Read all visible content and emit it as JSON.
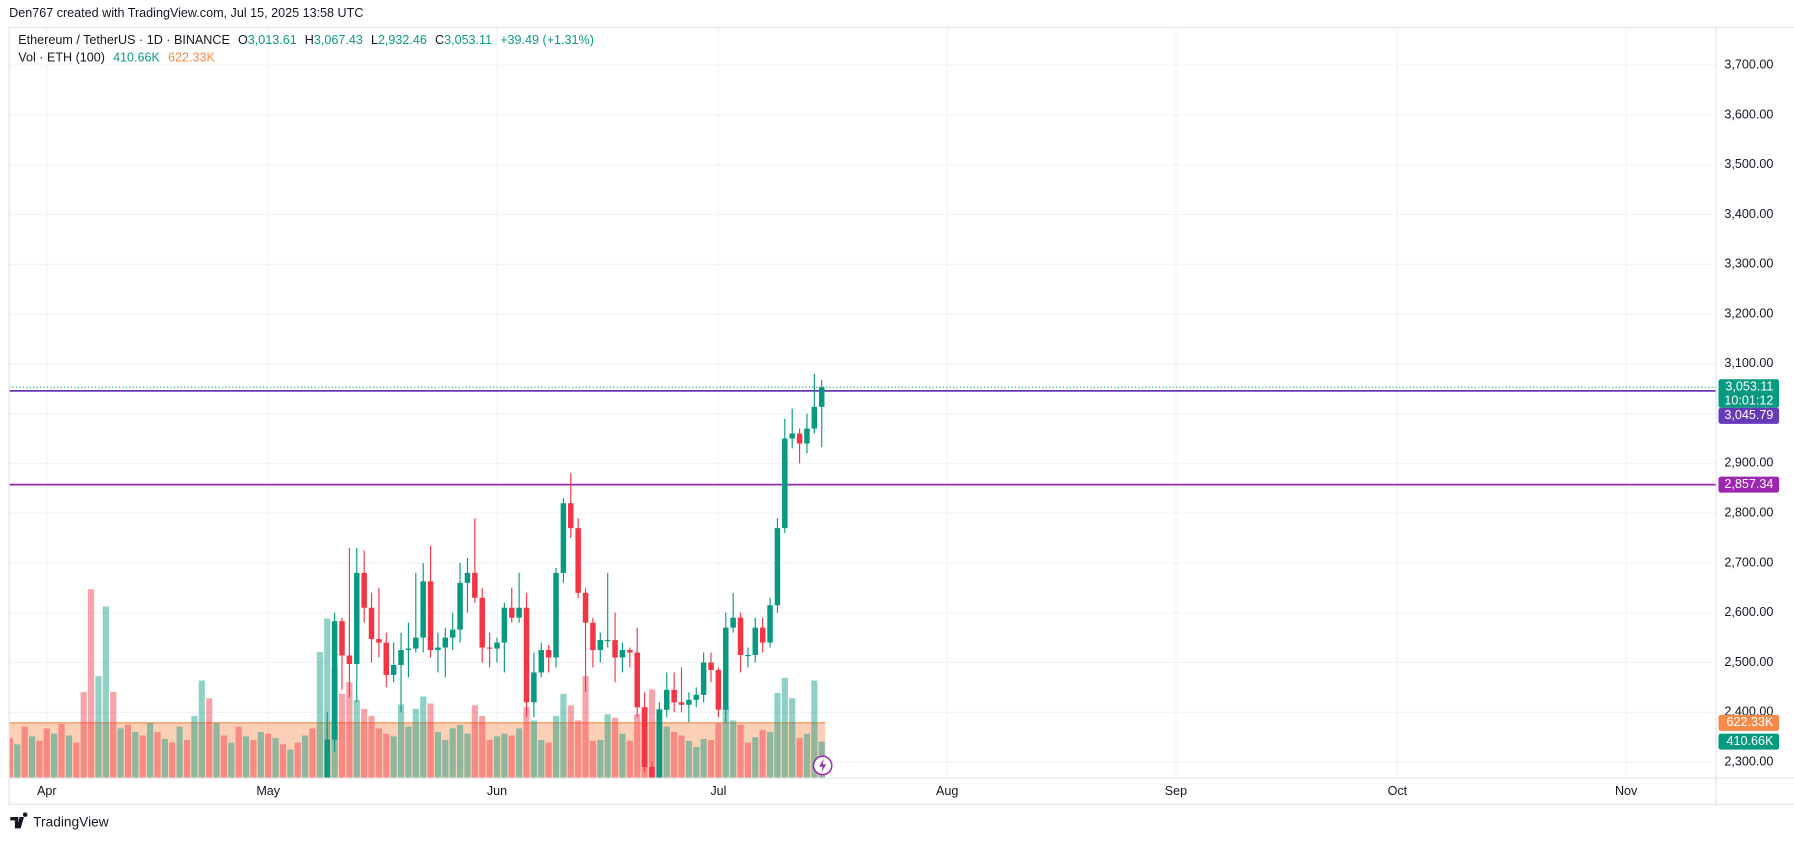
{
  "header": {
    "credit": "Den767 created with TradingView.com, Jul 15, 2025 13:58 UTC",
    "brand": "TradingView"
  },
  "chart_data": {
    "type": "candlestick",
    "legend": {
      "symbol": "Ethereum / TetherUS · 1D · BINANCE",
      "keys": [
        "O",
        "H",
        "L",
        "C"
      ],
      "ohlc": [
        "3,013.61",
        "3,067.43",
        "2,932.46",
        "3,053.11"
      ],
      "change": "+39.49 (+1.31%)",
      "volume_name": "Vol · ETH (100)"
    },
    "up_color": "#089981",
    "down_color": "#f23645",
    "xlim": [
      85.9,
      317.2
    ],
    "xticks": [
      {
        "value": 91,
        "label": "Apr"
      },
      {
        "value": 121,
        "label": "May"
      },
      {
        "value": 152,
        "label": "Jun"
      },
      {
        "value": 182,
        "label": "Jul"
      },
      {
        "value": 213,
        "label": "Aug"
      },
      {
        "value": 244,
        "label": "Sep"
      },
      {
        "value": 274,
        "label": "Oct"
      },
      {
        "value": 305,
        "label": "Nov"
      }
    ],
    "ylim": [
      2267.8,
      3775.9
    ],
    "yticks": [
      {
        "value": 2300,
        "label": "2,300.00"
      },
      {
        "value": 2400,
        "label": "2,400.00"
      },
      {
        "value": 2500,
        "label": "2,500.00"
      },
      {
        "value": 2600,
        "label": "2,600.00"
      },
      {
        "value": 2700,
        "label": "2,700.00"
      },
      {
        "value": 2800,
        "label": "2,800.00"
      },
      {
        "value": 2900,
        "label": "2,900.00"
      },
      {
        "value": 3000,
        "label": "3,000.00"
      },
      {
        "value": 3100,
        "label": "3,100.00"
      },
      {
        "value": 3200,
        "label": "3,200.00"
      },
      {
        "value": 3300,
        "label": "3,300.00"
      },
      {
        "value": 3400,
        "label": "3,400.00"
      },
      {
        "value": 3500,
        "label": "3,500.00"
      },
      {
        "value": 3600,
        "label": "3,600.00"
      },
      {
        "value": 3700,
        "label": "3,700.00"
      }
    ],
    "grid": true,
    "x": [
      129,
      130,
      131,
      132,
      133,
      134,
      135,
      136,
      137,
      138,
      139,
      140,
      141,
      142,
      143,
      144,
      145,
      146,
      147,
      148,
      149,
      150,
      151,
      152,
      153,
      154,
      155,
      156,
      157,
      158,
      159,
      160,
      161,
      162,
      163,
      164,
      165,
      166,
      167,
      168,
      169,
      170,
      171,
      172,
      173,
      174,
      175,
      176,
      177,
      178,
      179,
      180,
      181,
      182,
      183,
      184,
      185,
      186,
      187,
      188,
      189,
      190,
      191,
      192,
      193,
      194,
      195,
      196
    ],
    "open": [
      2207,
      2345,
      2583,
      2514,
      2497,
      2680,
      2610,
      2547,
      2540,
      2475,
      2495,
      2525,
      2528,
      2550,
      2663,
      2525,
      2530,
      2550,
      2566,
      2660,
      2680,
      2630,
      2530,
      2528,
      2540,
      2610,
      2590,
      2610,
      2420,
      2480,
      2525,
      2510,
      2680,
      2820,
      2770,
      2640,
      2580,
      2525,
      2545,
      2545,
      2510,
      2525,
      2520,
      2410,
      2290,
      2230,
      2405,
      2445,
      2420,
      2415,
      2425,
      2435,
      2500,
      2485,
      2405,
      2570,
      2590,
      2515,
      2515,
      2570,
      2540,
      2615,
      2770,
      2950,
      2960,
      2940,
      2970,
      3013.61
    ],
    "high": [
      2400,
      2600,
      2590,
      2730,
      2730,
      2725,
      2640,
      2650,
      2560,
      2540,
      2560,
      2580,
      2680,
      2700,
      2735,
      2560,
      2570,
      2600,
      2700,
      2710,
      2790,
      2650,
      2560,
      2550,
      2620,
      2650,
      2680,
      2640,
      2520,
      2540,
      2535,
      2690,
      2830,
      2880,
      2790,
      2650,
      2590,
      2560,
      2680,
      2600,
      2540,
      2530,
      2570,
      2440,
      2300,
      2420,
      2480,
      2480,
      2490,
      2440,
      2450,
      2520,
      2520,
      2490,
      2600,
      2640,
      2600,
      2530,
      2590,
      2590,
      2630,
      2790,
      2990,
      3010,
      2970,
      3000,
      3080,
      3067.43
    ],
    "low": [
      2150,
      2320,
      2445,
      2430,
      2420,
      2580,
      2500,
      2510,
      2450,
      2460,
      2400,
      2470,
      2520,
      2520,
      2510,
      2480,
      2470,
      2525,
      2540,
      2600,
      2620,
      2500,
      2490,
      2500,
      2480,
      2580,
      2580,
      2390,
      2390,
      2470,
      2480,
      2490,
      2660,
      2750,
      2630,
      2440,
      2490,
      2500,
      2530,
      2460,
      2480,
      2490,
      2390,
      2280,
      2110,
      2160,
      2390,
      2400,
      2400,
      2380,
      2410,
      2420,
      2460,
      2390,
      2380,
      2560,
      2480,
      2490,
      2500,
      2520,
      2530,
      2600,
      2760,
      2930,
      2900,
      2920,
      2960,
      2932.46
    ],
    "close": [
      2345,
      2583,
      2514,
      2497,
      2680,
      2610,
      2547,
      2540,
      2475,
      2495,
      2525,
      2528,
      2550,
      2663,
      2525,
      2530,
      2550,
      2566,
      2660,
      2680,
      2630,
      2530,
      2528,
      2540,
      2610,
      2590,
      2610,
      2420,
      2480,
      2525,
      2510,
      2680,
      2820,
      2770,
      2640,
      2580,
      2525,
      2545,
      2545,
      2510,
      2525,
      2520,
      2410,
      2290,
      2230,
      2405,
      2445,
      2420,
      2415,
      2425,
      2435,
      2500,
      2485,
      2405,
      2570,
      2590,
      2515,
      2515,
      2570,
      2540,
      2615,
      2770,
      2950,
      2960,
      2940,
      2970,
      3013.61,
      3053.11
    ],
    "last_price": {
      "value": 3053.11,
      "label": "3,053.11",
      "countdown": "10:01:12",
      "color": "#089981"
    },
    "levels": [
      {
        "value": 3045.79,
        "label": "3,045.79",
        "color": "#673ab7"
      },
      {
        "value": 2857.34,
        "label": "2,857.34",
        "color": "#9c27b0"
      }
    ],
    "volume": {
      "y2lim": [
        0,
        8465
      ],
      "x": [
        86,
        87,
        88,
        89,
        90,
        91,
        92,
        93,
        94,
        95,
        96,
        97,
        98,
        99,
        100,
        101,
        102,
        103,
        104,
        105,
        106,
        107,
        108,
        109,
        110,
        111,
        112,
        113,
        114,
        115,
        116,
        117,
        118,
        119,
        120,
        121,
        122,
        123,
        124,
        125,
        126,
        127,
        128,
        129,
        130,
        131,
        132,
        133,
        134,
        135,
        136,
        137,
        138,
        139,
        140,
        141,
        142,
        143,
        144,
        145,
        146,
        147,
        148,
        149,
        150,
        151,
        152,
        153,
        154,
        155,
        156,
        157,
        158,
        159,
        160,
        161,
        162,
        163,
        164,
        165,
        166,
        167,
        168,
        169,
        170,
        171,
        172,
        173,
        174,
        175,
        176,
        177,
        178,
        179,
        180,
        181,
        182,
        183,
        184,
        185,
        186,
        187,
        188,
        189,
        190,
        191,
        192,
        193,
        194,
        195,
        196
      ],
      "values": [
        450,
        380,
        580,
        470,
        420,
        560,
        500,
        610,
        480,
        400,
        970,
        2130,
        1150,
        1935,
        970,
        560,
        600,
        520,
        480,
        620,
        520,
        440,
        400,
        580,
        430,
        700,
        1100,
        900,
        620,
        480,
        400,
        580,
        470,
        430,
        520,
        500,
        450,
        380,
        320,
        400,
        480,
        560,
        1420,
        1800,
        1250,
        950,
        1080,
        880,
        780,
        700,
        560,
        500,
        470,
        830,
        580,
        780,
        920,
        840,
        520,
        430,
        560,
        600,
        500,
        820,
        700,
        430,
        470,
        500,
        480,
        560,
        800,
        650,
        430,
        400,
        700,
        950,
        820,
        650,
        1150,
        420,
        430,
        720,
        680,
        500,
        420,
        720,
        800,
        1000,
        780,
        580,
        520,
        480,
        420,
        350,
        440,
        430,
        620,
        780,
        650,
        600,
        400,
        460,
        540,
        520,
        960,
        1130,
        900,
        450,
        500,
        1100,
        410.66
      ],
      "colors": [
        "#f23645",
        "#089981",
        "#f23645",
        "#089981",
        "#f23645",
        "#f23645",
        "#089981",
        "#f23645",
        "#089981",
        "#f23645",
        "#f23645",
        "#f23645",
        "#089981",
        "#089981",
        "#f23645",
        "#089981",
        "#f23645",
        "#089981",
        "#f23645",
        "#089981",
        "#f23645",
        "#089981",
        "#f23645",
        "#089981",
        "#f23645",
        "#089981",
        "#089981",
        "#f23645",
        "#089981",
        "#f23645",
        "#089981",
        "#f23645",
        "#089981",
        "#f23645",
        "#089981",
        "#f23645",
        "#089981",
        "#f23645",
        "#089981",
        "#f23645",
        "#089981",
        "#f23645",
        "#089981",
        "#089981",
        "#089981",
        "#f23645",
        "#f23645",
        "#089981",
        "#f23645",
        "#f23645",
        "#f23645",
        "#f23645",
        "#089981",
        "#089981",
        "#089981",
        "#089981",
        "#089981",
        "#f23645",
        "#089981",
        "#089981",
        "#089981",
        "#089981",
        "#089981",
        "#f23645",
        "#f23645",
        "#f23645",
        "#089981",
        "#089981",
        "#f23645",
        "#089981",
        "#f23645",
        "#089981",
        "#089981",
        "#f23645",
        "#089981",
        "#089981",
        "#f23645",
        "#f23645",
        "#f23645",
        "#f23645",
        "#089981",
        "#089981",
        "#f23645",
        "#089981",
        "#f23645",
        "#f23645",
        "#f23645",
        "#f23645",
        "#089981",
        "#089981",
        "#f23645",
        "#f23645",
        "#089981",
        "#089981",
        "#089981",
        "#f23645",
        "#f23645",
        "#089981",
        "#089981",
        "#f23645",
        "#f23645",
        "#089981",
        "#f23645",
        "#089981",
        "#089981",
        "#089981",
        "#089981",
        "#f23645",
        "#089981",
        "#089981",
        "#089981"
      ],
      "last_label": "410.66K",
      "ma": {
        "value": 622.33,
        "label": "622.33K",
        "color": "#f7894a"
      }
    }
  }
}
